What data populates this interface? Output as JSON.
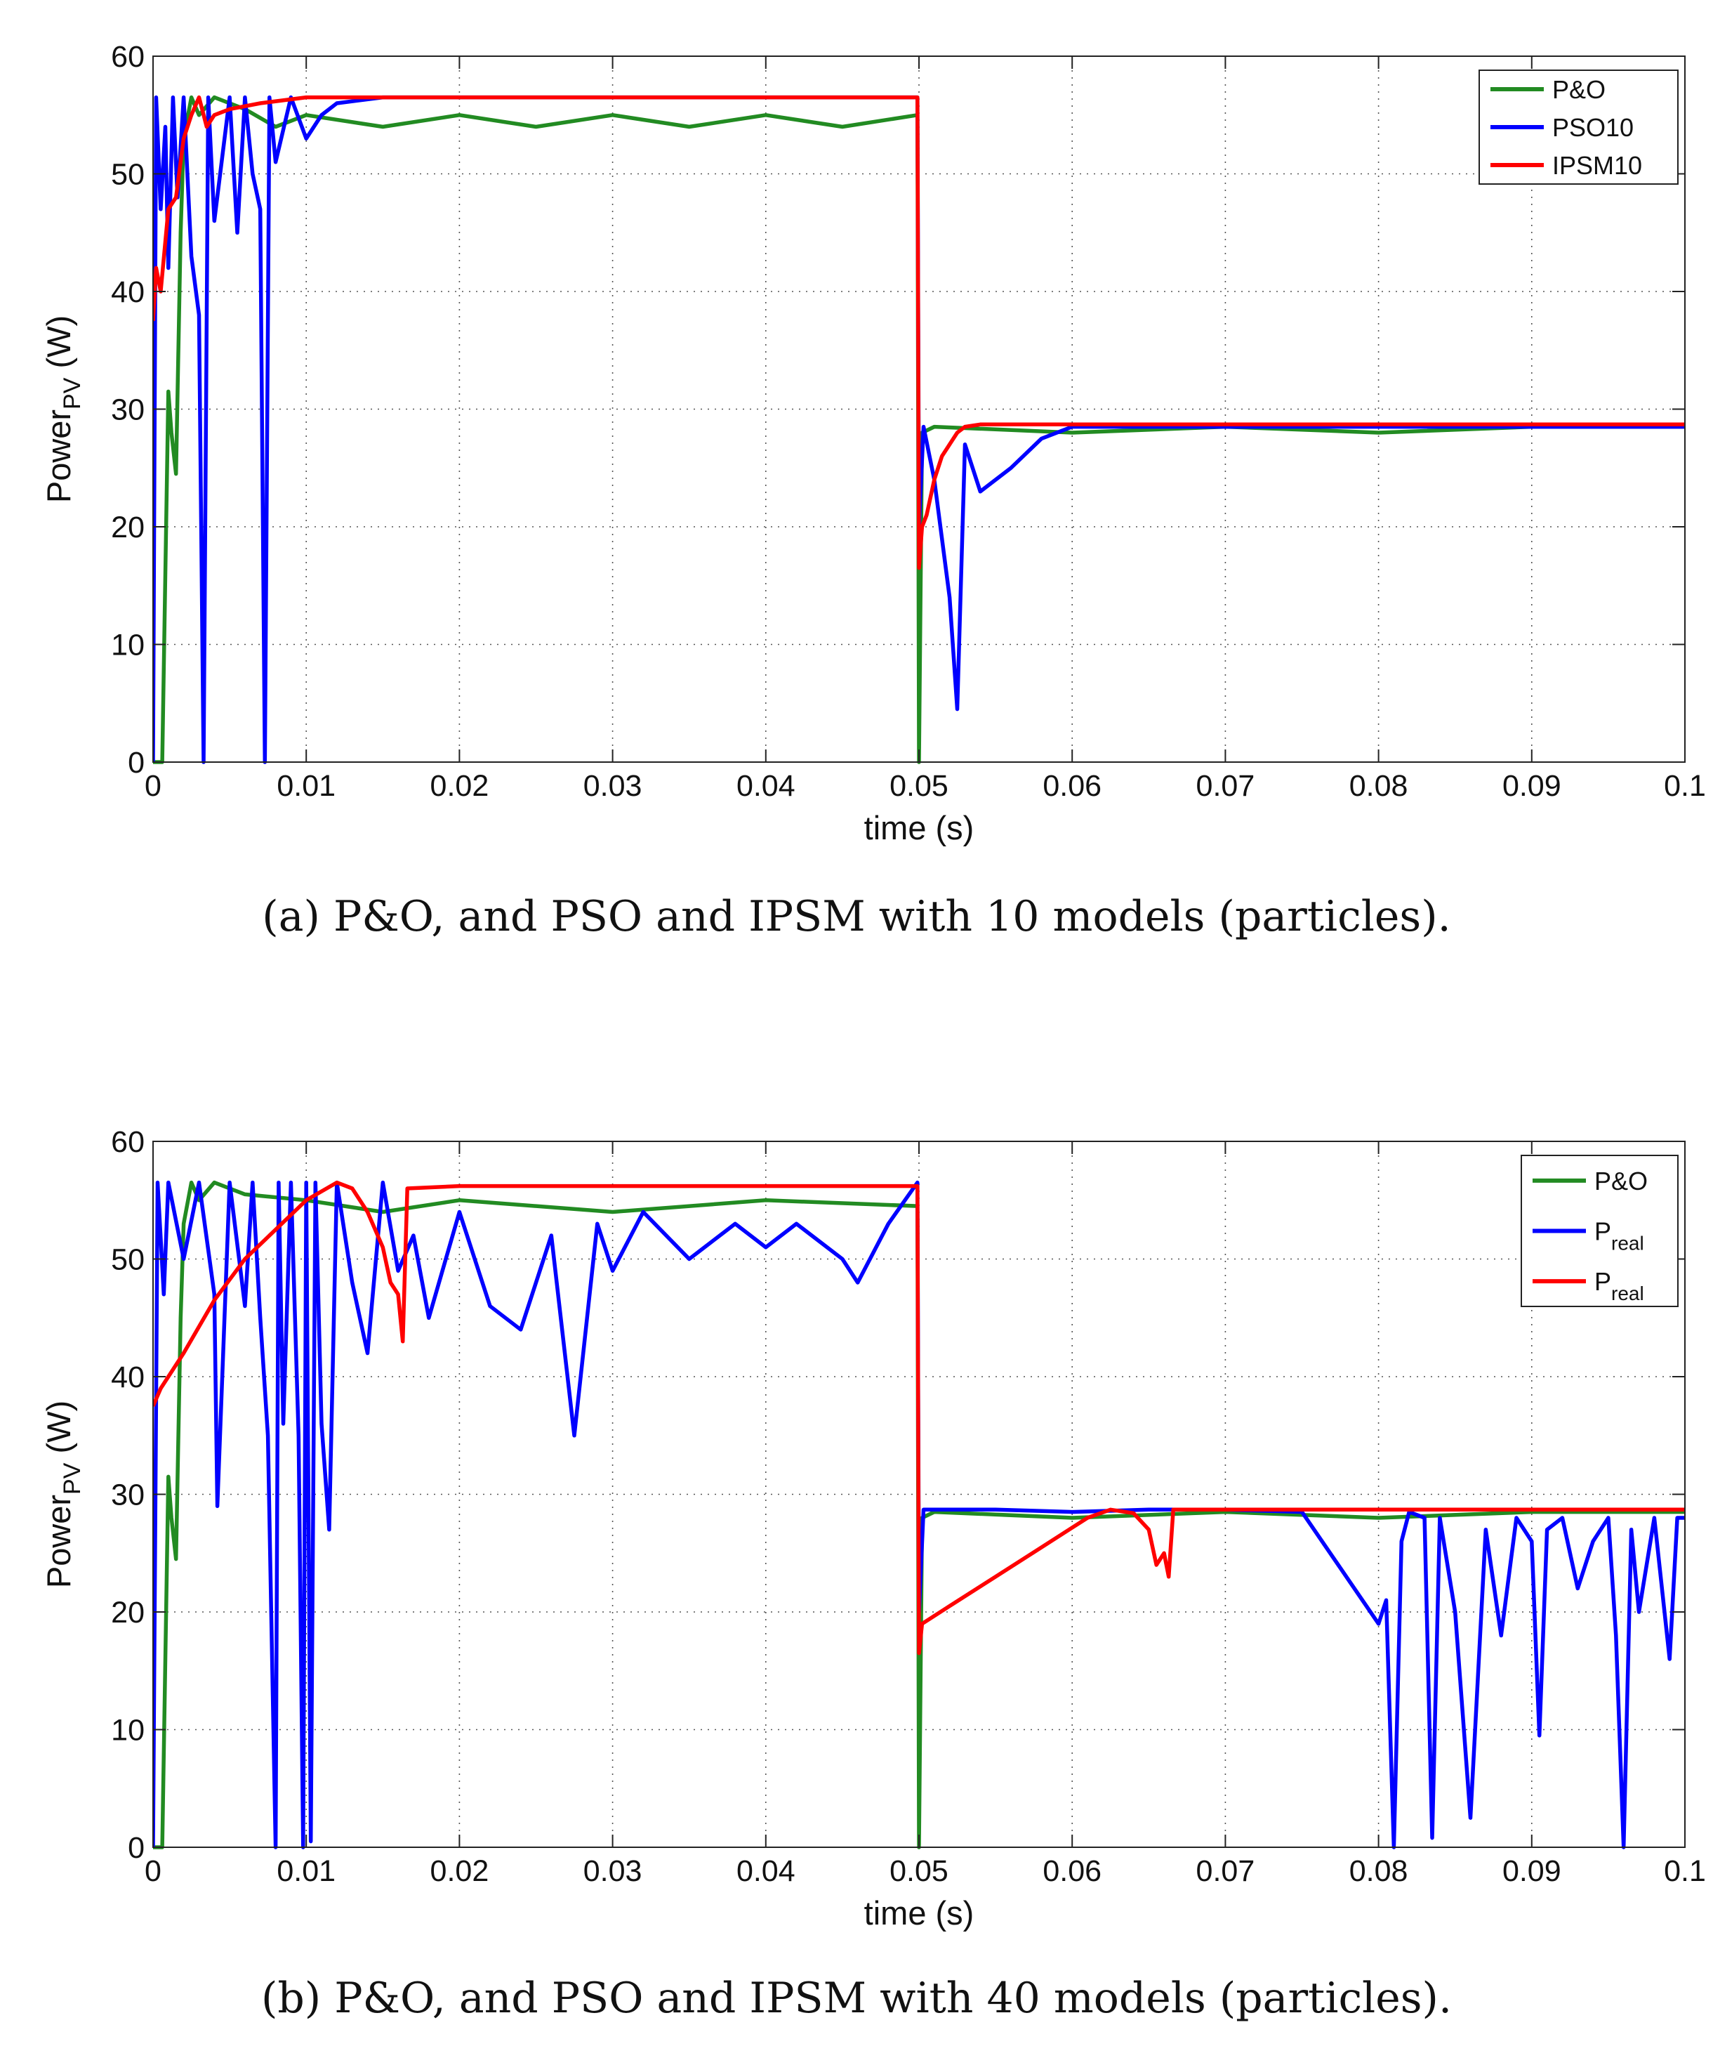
{
  "figures": [
    {
      "caption": "(a)  P&O, and PSO and IPSM with 10 models (particles).",
      "legend_names": [
        "P&O",
        "PSO10",
        "IPSM10"
      ]
    },
    {
      "caption": "(b)  P&O, and PSO and IPSM with 40 models (particles).",
      "legend_names": [
        "P&O",
        "P_real",
        "P_real"
      ]
    }
  ],
  "chart_data": [
    {
      "type": "line",
      "xlabel": "time (s)",
      "ylabel": "Power_PV (W)",
      "xlim": [
        0,
        0.1
      ],
      "ylim": [
        0,
        60
      ],
      "xticks": [
        0,
        0.01,
        0.02,
        0.03,
        0.04,
        0.05,
        0.06,
        0.07,
        0.08,
        0.09,
        0.1
      ],
      "xtick_labels": [
        "0",
        "0.01",
        "0.02",
        "0.03",
        "0.04",
        "0.05",
        "0.06",
        "0.07",
        "0.08",
        "0.09",
        "0.1"
      ],
      "yticks": [
        0,
        10,
        20,
        30,
        40,
        50,
        60
      ],
      "ytick_labels": [
        "0",
        "10",
        "20",
        "30",
        "40",
        "50",
        "60"
      ],
      "grid": true,
      "legend_position": "top-right",
      "series": [
        {
          "name": "P&O",
          "color": "#228B22",
          "x": [
            0,
            0.0003,
            0.0006,
            0.001,
            0.0012,
            0.0015,
            0.0018,
            0.002,
            0.0025,
            0.003,
            0.004,
            0.006,
            0.008,
            0.01,
            0.015,
            0.02,
            0.025,
            0.03,
            0.035,
            0.04,
            0.045,
            0.0499,
            0.05,
            0.0502,
            0.051,
            0.06,
            0.07,
            0.08,
            0.09,
            0.1
          ],
          "y": [
            0,
            0,
            0,
            31.5,
            28,
            24.5,
            45,
            53,
            56.5,
            55,
            56.5,
            55.5,
            54,
            55,
            54,
            55,
            54,
            55,
            54,
            55,
            54,
            55,
            0,
            28,
            28.5,
            28,
            28.5,
            28,
            28.5,
            28.5
          ]
        },
        {
          "name": "PSO10",
          "color": "#0000FF",
          "x": [
            0,
            0.0002,
            0.0005,
            0.0008,
            0.001,
            0.0013,
            0.0016,
            0.002,
            0.0025,
            0.003,
            0.0033,
            0.0036,
            0.004,
            0.005,
            0.0055,
            0.006,
            0.0065,
            0.007,
            0.0073,
            0.0076,
            0.008,
            0.009,
            0.01,
            0.011,
            0.012,
            0.015,
            0.02,
            0.03,
            0.04,
            0.0499,
            0.05,
            0.0503,
            0.051,
            0.052,
            0.0525,
            0.053,
            0.054,
            0.056,
            0.058,
            0.06,
            0.065,
            0.07,
            0.08,
            0.09,
            0.1
          ],
          "y": [
            0,
            56.5,
            47,
            54,
            42,
            56.5,
            48,
            56.5,
            43,
            38,
            0,
            56.5,
            46,
            56.5,
            45,
            56.5,
            50,
            47,
            0,
            56.5,
            51,
            56.5,
            53,
            55,
            56,
            56.5,
            56.5,
            56.5,
            56.5,
            56.5,
            20,
            28.5,
            24,
            14,
            4.5,
            27,
            23,
            25,
            27.5,
            28.5,
            28.5,
            28.5,
            28.5,
            28.5,
            28.5
          ]
        },
        {
          "name": "IPSM10",
          "color": "#FF0000",
          "x": [
            0,
            0.0002,
            0.0005,
            0.001,
            0.0015,
            0.002,
            0.0025,
            0.003,
            0.0035,
            0.004,
            0.005,
            0.007,
            0.01,
            0.02,
            0.03,
            0.04,
            0.0499,
            0.05,
            0.0502,
            0.0505,
            0.051,
            0.0515,
            0.052,
            0.0525,
            0.053,
            0.054,
            0.06,
            0.08,
            0.1
          ],
          "y": [
            37.5,
            42,
            40,
            47,
            48,
            53,
            55,
            56.5,
            54,
            55,
            55.5,
            56,
            56.5,
            56.5,
            56.5,
            56.5,
            56.5,
            16.5,
            20,
            21,
            24,
            26,
            27,
            28,
            28.5,
            28.7,
            28.7,
            28.7,
            28.7
          ]
        }
      ]
    },
    {
      "type": "line",
      "xlabel": "time (s)",
      "ylabel": "Power_PV (W)",
      "xlim": [
        0,
        0.1
      ],
      "ylim": [
        0,
        60
      ],
      "xticks": [
        0,
        0.01,
        0.02,
        0.03,
        0.04,
        0.05,
        0.06,
        0.07,
        0.08,
        0.09,
        0.1
      ],
      "xtick_labels": [
        "0",
        "0.01",
        "0.02",
        "0.03",
        "0.04",
        "0.05",
        "0.06",
        "0.07",
        "0.08",
        "0.09",
        "0.1"
      ],
      "yticks": [
        0,
        10,
        20,
        30,
        40,
        50,
        60
      ],
      "ytick_labels": [
        "0",
        "10",
        "20",
        "30",
        "40",
        "50",
        "60"
      ],
      "grid": true,
      "legend_position": "top-right",
      "series": [
        {
          "name": "P&O",
          "color": "#228B22",
          "x": [
            0,
            0.0003,
            0.0006,
            0.001,
            0.0012,
            0.0015,
            0.0018,
            0.002,
            0.0025,
            0.003,
            0.004,
            0.006,
            0.01,
            0.015,
            0.02,
            0.03,
            0.04,
            0.0499,
            0.05,
            0.0502,
            0.051,
            0.06,
            0.07,
            0.08,
            0.09,
            0.1
          ],
          "y": [
            0,
            0,
            0,
            31.5,
            28,
            24.5,
            45,
            53,
            56.5,
            55,
            56.5,
            55.5,
            55,
            54,
            55,
            54,
            55,
            54.5,
            0,
            28,
            28.5,
            28,
            28.5,
            28,
            28.5,
            28.5
          ]
        },
        {
          "name": "P_real",
          "color": "#0000FF",
          "x": [
            0,
            0.0003,
            0.0007,
            0.001,
            0.002,
            0.003,
            0.004,
            0.0042,
            0.005,
            0.006,
            0.0065,
            0.007,
            0.0075,
            0.008,
            0.0082,
            0.0085,
            0.009,
            0.0095,
            0.0098,
            0.01,
            0.0103,
            0.0106,
            0.011,
            0.0115,
            0.012,
            0.013,
            0.014,
            0.015,
            0.016,
            0.017,
            0.018,
            0.02,
            0.022,
            0.024,
            0.026,
            0.0275,
            0.029,
            0.03,
            0.032,
            0.035,
            0.038,
            0.04,
            0.042,
            0.045,
            0.046,
            0.048,
            0.0499,
            0.05,
            0.0503,
            0.055,
            0.06,
            0.065,
            0.07,
            0.075,
            0.08,
            0.0805,
            0.081,
            0.0815,
            0.082,
            0.083,
            0.0835,
            0.084,
            0.085,
            0.086,
            0.087,
            0.088,
            0.089,
            0.09,
            0.0905,
            0.091,
            0.092,
            0.093,
            0.094,
            0.095,
            0.0955,
            0.096,
            0.0965,
            0.097,
            0.098,
            0.099,
            0.0995,
            0.1
          ],
          "y": [
            0,
            56.5,
            47,
            56.5,
            50,
            56.5,
            47,
            29,
            56.5,
            46,
            56.5,
            45,
            35,
            0,
            56.5,
            36,
            56.5,
            35,
            0,
            56.5,
            0.5,
            56.5,
            36,
            27,
            56.5,
            48,
            42,
            56.5,
            49,
            52,
            45,
            54,
            46,
            44,
            52,
            35,
            53,
            49,
            54,
            50,
            53,
            51,
            53,
            50,
            48,
            53,
            56.5,
            20,
            28.7,
            28.7,
            28.5,
            28.7,
            28.7,
            28.5,
            19,
            21,
            0,
            26,
            28.5,
            28,
            0.8,
            28,
            20,
            2.5,
            27,
            18,
            28,
            26,
            9.5,
            27,
            28,
            22,
            26,
            28,
            18,
            0,
            27,
            20,
            28,
            16,
            28,
            28
          ]
        },
        {
          "name": "P_real",
          "color": "#FF0000",
          "x": [
            0,
            0.0005,
            0.001,
            0.002,
            0.004,
            0.006,
            0.008,
            0.01,
            0.012,
            0.013,
            0.014,
            0.015,
            0.0155,
            0.016,
            0.0163,
            0.0166,
            0.02,
            0.03,
            0.04,
            0.0499,
            0.05,
            0.0502,
            0.052,
            0.055,
            0.058,
            0.061,
            0.0625,
            0.064,
            0.065,
            0.0655,
            0.066,
            0.0663,
            0.0666,
            0.07,
            0.08,
            0.09,
            0.1
          ],
          "y": [
            37.5,
            39,
            40,
            42,
            46.5,
            50,
            52.5,
            55,
            56.5,
            56,
            54,
            51,
            48,
            47,
            43,
            56,
            56.2,
            56.2,
            56.2,
            56.2,
            16.5,
            19,
            20.5,
            23,
            25.5,
            28,
            28.7,
            28.4,
            27,
            24,
            25,
            23,
            28.7,
            28.7,
            28.7,
            28.7,
            28.7
          ]
        }
      ]
    }
  ]
}
